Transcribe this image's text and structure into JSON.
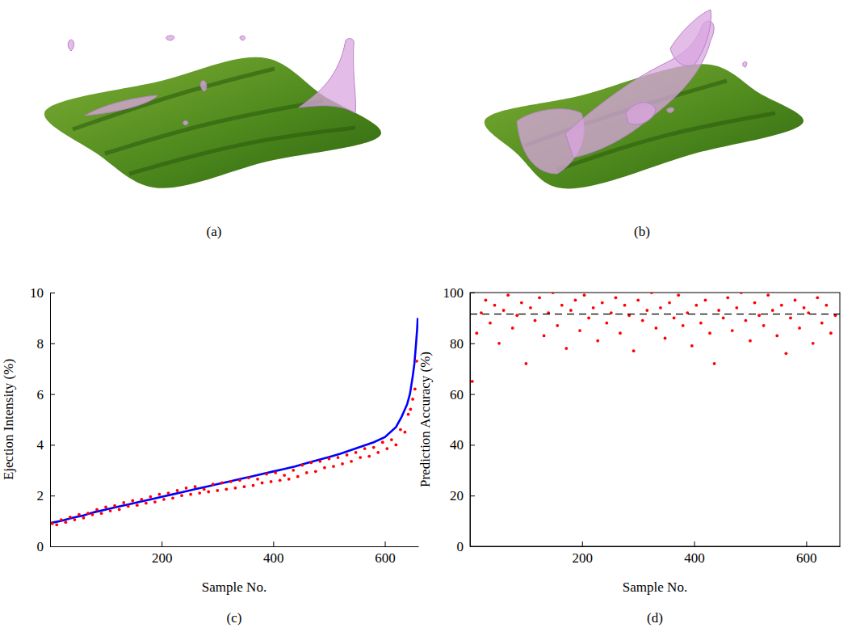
{
  "images": [
    {
      "caption": "(a)"
    },
    {
      "caption": "(b)"
    }
  ],
  "chart_data": [
    {
      "type": "scatter",
      "caption": "(c)",
      "x_label": "Sample No.",
      "y_label": "Ejection Intensity (%)",
      "xlim": [
        0,
        660
      ],
      "xticks": [
        200,
        400,
        600
      ],
      "ylim": [
        0,
        10
      ],
      "yticks": [
        0,
        2,
        4,
        6,
        8,
        10
      ],
      "series": [
        {
          "type": "line",
          "color": "#0000ff",
          "x": [
            1,
            20,
            40,
            60,
            80,
            100,
            120,
            140,
            160,
            180,
            200,
            220,
            240,
            260,
            280,
            300,
            320,
            340,
            360,
            380,
            400,
            420,
            440,
            460,
            480,
            500,
            520,
            540,
            560,
            580,
            600,
            620,
            630,
            640,
            645,
            650,
            653,
            656,
            658,
            659
          ],
          "values": [
            0.92,
            1.0,
            1.12,
            1.22,
            1.35,
            1.45,
            1.55,
            1.65,
            1.75,
            1.85,
            1.95,
            2.05,
            2.15,
            2.25,
            2.35,
            2.45,
            2.55,
            2.65,
            2.75,
            2.85,
            2.95,
            3.05,
            3.15,
            3.28,
            3.4,
            3.52,
            3.65,
            3.8,
            3.95,
            4.1,
            4.3,
            4.7,
            5.1,
            5.6,
            6.0,
            6.7,
            7.2,
            8.0,
            8.6,
            9.0
          ]
        },
        {
          "type": "scatter",
          "color": "#ff0000",
          "marker": "dot",
          "x": [
            4,
            12,
            20,
            28,
            36,
            44,
            52,
            60,
            68,
            76,
            84,
            92,
            100,
            108,
            116,
            124,
            132,
            140,
            148,
            156,
            164,
            172,
            180,
            188,
            196,
            204,
            212,
            220,
            228,
            236,
            244,
            252,
            260,
            268,
            276,
            284,
            292,
            300,
            308,
            316,
            324,
            332,
            340,
            348,
            356,
            364,
            372,
            380,
            388,
            396,
            404,
            412,
            420,
            428,
            436,
            444,
            452,
            460,
            468,
            476,
            484,
            492,
            500,
            508,
            516,
            524,
            532,
            540,
            548,
            556,
            564,
            572,
            580,
            588,
            596,
            604,
            612,
            620,
            628,
            636,
            642,
            646,
            650,
            654,
            657
          ],
          "values": [
            0.9,
            0.85,
            1.05,
            0.95,
            1.15,
            1.05,
            1.25,
            1.12,
            1.3,
            1.25,
            1.45,
            1.3,
            1.55,
            1.4,
            1.6,
            1.45,
            1.72,
            1.58,
            1.8,
            1.62,
            1.85,
            1.7,
            1.95,
            1.75,
            2.05,
            1.85,
            2.1,
            1.9,
            2.2,
            2.0,
            2.3,
            2.05,
            2.35,
            2.1,
            2.25,
            2.15,
            2.45,
            2.2,
            2.5,
            2.25,
            2.55,
            2.3,
            2.6,
            2.35,
            2.7,
            2.4,
            2.65,
            2.5,
            2.85,
            2.55,
            2.9,
            2.6,
            2.8,
            2.65,
            3.0,
            2.75,
            3.2,
            2.9,
            3.3,
            2.95,
            3.35,
            3.1,
            3.45,
            3.15,
            3.5,
            3.25,
            3.6,
            3.35,
            3.7,
            3.5,
            3.85,
            3.55,
            3.9,
            3.7,
            4.1,
            3.85,
            4.2,
            4.0,
            4.6,
            4.5,
            5.2,
            5.4,
            5.8,
            6.2,
            7.3
          ]
        }
      ]
    },
    {
      "type": "scatter",
      "caption": "(d)",
      "x_label": "Sample No.",
      "y_label": "Prediction Accuracy (%)",
      "xlim": [
        0,
        660
      ],
      "xticks": [
        200,
        400,
        600
      ],
      "ylim": [
        0,
        100
      ],
      "yticks": [
        0,
        20,
        40,
        60,
        80,
        100
      ],
      "series": [
        {
          "type": "scatter",
          "color": "#ff0000",
          "marker": "dot",
          "x": [
            4,
            12,
            20,
            28,
            36,
            44,
            52,
            60,
            68,
            76,
            84,
            92,
            100,
            108,
            116,
            124,
            132,
            140,
            148,
            156,
            164,
            172,
            180,
            188,
            196,
            204,
            212,
            220,
            228,
            236,
            244,
            252,
            260,
            268,
            276,
            284,
            292,
            300,
            308,
            316,
            324,
            332,
            340,
            348,
            356,
            364,
            372,
            380,
            388,
            396,
            404,
            412,
            420,
            428,
            436,
            444,
            452,
            460,
            468,
            476,
            484,
            492,
            500,
            508,
            516,
            524,
            532,
            540,
            548,
            556,
            564,
            572,
            580,
            588,
            596,
            604,
            612,
            620,
            628,
            636,
            644,
            652
          ],
          "values": [
            65,
            84,
            92,
            97,
            88,
            95,
            80,
            93,
            99,
            86,
            91,
            96,
            72,
            94,
            89,
            98,
            83,
            92,
            100,
            87,
            95,
            78,
            93,
            97,
            85,
            99,
            90,
            94,
            81,
            96,
            88,
            92,
            98,
            84,
            95,
            91,
            77,
            97,
            89,
            93,
            100,
            86,
            94,
            82,
            96,
            90,
            99,
            87,
            92,
            79,
            95,
            88,
            97,
            84,
            72,
            93,
            90,
            98,
            85,
            94,
            100,
            89,
            81,
            96,
            91,
            87,
            99,
            93,
            83,
            95,
            76,
            90,
            97,
            86,
            94,
            92,
            80,
            98,
            88,
            95,
            84,
            91
          ]
        },
        {
          "type": "line",
          "color": "#000000",
          "line_style": "dashed",
          "x": [
            0,
            660
          ],
          "values": [
            91.5,
            91.5
          ]
        }
      ]
    }
  ]
}
